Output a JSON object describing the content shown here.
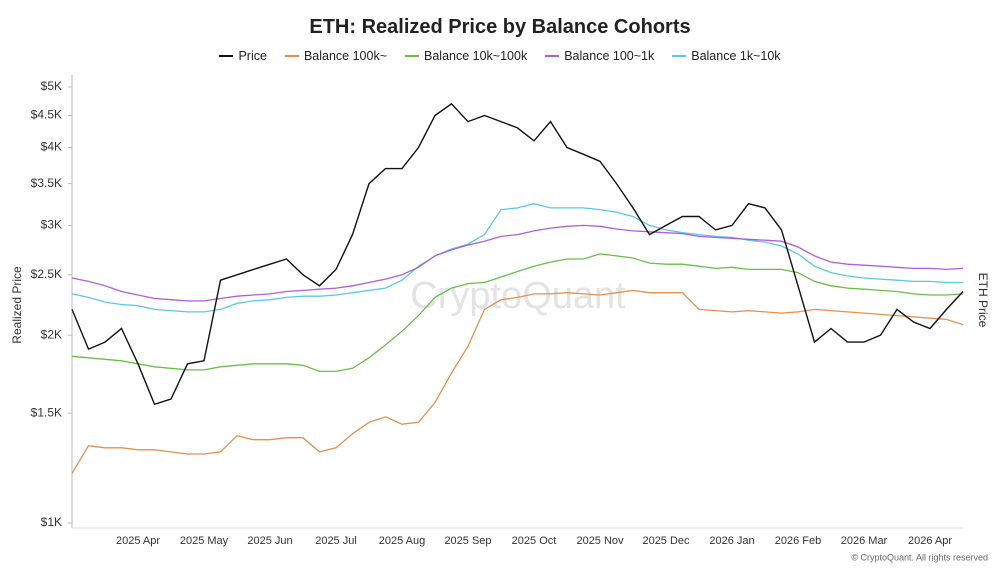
{
  "chart_data": {
    "type": "line",
    "title": "ETH: Realized Price by Balance Cohorts",
    "y_label": "Realized Price",
    "y2_label": "ETH Price",
    "watermark": "CryptoQuant",
    "credit": "© CryptoQuant. All rights reserved",
    "log_scale": true,
    "grid": false,
    "legend": "top",
    "categories": [
      null,
      null,
      null,
      null,
      "2025 Apr",
      null,
      null,
      null,
      "2025 May",
      null,
      null,
      null,
      "2025 Jun",
      null,
      null,
      null,
      "2025 Jul",
      null,
      null,
      null,
      "2025 Aug",
      null,
      null,
      null,
      "2025 Sep",
      null,
      null,
      null,
      "2025 Oct",
      null,
      null,
      null,
      "2025 Nov",
      null,
      null,
      null,
      "2025 Dec",
      null,
      null,
      null,
      "2026 Jan",
      null,
      null,
      null,
      "2026 Feb",
      null,
      null,
      null,
      "2026 Mar",
      null,
      null,
      null,
      "2026 Apr",
      null,
      null
    ],
    "ylim": [
      1000,
      5000
    ],
    "yticks": [
      {
        "value": 1000,
        "label": "$1K"
      },
      {
        "value": 1500,
        "label": "$1.5K"
      },
      {
        "value": 2000,
        "label": "$2K"
      },
      {
        "value": 2500,
        "label": "$2.5K"
      },
      {
        "value": 3000,
        "label": "$3K"
      },
      {
        "value": 3500,
        "label": "$3.5K"
      },
      {
        "value": 4000,
        "label": "$4K"
      },
      {
        "value": 4500,
        "label": "$4.5K"
      },
      {
        "value": 5000,
        "label": "$5K"
      }
    ],
    "series": [
      {
        "name": "Price",
        "color": "#111111",
        "values": [
          2200,
          1900,
          1950,
          2050,
          1800,
          1550,
          1580,
          1800,
          1820,
          2450,
          2500,
          2550,
          2600,
          2650,
          2500,
          2400,
          2550,
          2900,
          3500,
          3700,
          3700,
          4000,
          4500,
          4700,
          4400,
          4500,
          4400,
          4300,
          4100,
          4400,
          4000,
          3900,
          3800,
          3500,
          3200,
          2900,
          3000,
          3100,
          3100,
          2950,
          3000,
          3250,
          3200,
          2950,
          2400,
          1950,
          2050,
          1950,
          1950,
          2000,
          2200,
          2100,
          2050,
          2200,
          2350
        ]
      },
      {
        "name": "Balance 100k~",
        "color": "#e8904a",
        "values": [
          1200,
          1330,
          1320,
          1320,
          1310,
          1310,
          1300,
          1290,
          1290,
          1300,
          1380,
          1360,
          1360,
          1370,
          1370,
          1300,
          1320,
          1390,
          1450,
          1480,
          1440,
          1450,
          1560,
          1740,
          1920,
          2200,
          2280,
          2300,
          2330,
          2330,
          2340,
          2330,
          2320,
          2340,
          2360,
          2340,
          2340,
          2340,
          2200,
          2190,
          2180,
          2190,
          2180,
          2170,
          2180,
          2200,
          2190,
          2180,
          2170,
          2160,
          2150,
          2140,
          2130,
          2120,
          2080
        ]
      },
      {
        "name": "Balance 10k~100k",
        "color": "#6abf4b",
        "values": [
          1850,
          1840,
          1830,
          1820,
          1800,
          1780,
          1770,
          1760,
          1760,
          1780,
          1790,
          1800,
          1800,
          1800,
          1790,
          1750,
          1750,
          1770,
          1840,
          1930,
          2030,
          2150,
          2300,
          2380,
          2420,
          2430,
          2480,
          2530,
          2580,
          2620,
          2650,
          2650,
          2700,
          2680,
          2660,
          2610,
          2600,
          2600,
          2580,
          2560,
          2570,
          2550,
          2550,
          2550,
          2520,
          2440,
          2400,
          2380,
          2370,
          2360,
          2350,
          2330,
          2320,
          2320,
          2330
        ]
      },
      {
        "name": "Balance 100~1k",
        "color": "#b05fd9",
        "values": [
          2470,
          2440,
          2400,
          2350,
          2320,
          2290,
          2280,
          2270,
          2270,
          2290,
          2310,
          2320,
          2330,
          2350,
          2360,
          2370,
          2380,
          2400,
          2430,
          2460,
          2500,
          2570,
          2680,
          2740,
          2790,
          2830,
          2880,
          2900,
          2940,
          2970,
          2990,
          3000,
          2990,
          2960,
          2940,
          2930,
          2920,
          2910,
          2880,
          2870,
          2860,
          2850,
          2840,
          2830,
          2770,
          2680,
          2620,
          2600,
          2590,
          2580,
          2570,
          2560,
          2560,
          2550,
          2560
        ]
      },
      {
        "name": "Balance 1k~10k",
        "color": "#5bc8e8",
        "values": [
          2330,
          2300,
          2260,
          2240,
          2230,
          2200,
          2190,
          2180,
          2180,
          2200,
          2250,
          2270,
          2280,
          2300,
          2310,
          2310,
          2320,
          2340,
          2360,
          2380,
          2450,
          2580,
          2680,
          2750,
          2800,
          2900,
          3180,
          3200,
          3250,
          3200,
          3200,
          3200,
          3180,
          3150,
          3100,
          3000,
          2950,
          2920,
          2900,
          2880,
          2870,
          2840,
          2820,
          2780,
          2700,
          2580,
          2520,
          2490,
          2470,
          2460,
          2450,
          2440,
          2440,
          2430,
          2430
        ]
      }
    ]
  }
}
